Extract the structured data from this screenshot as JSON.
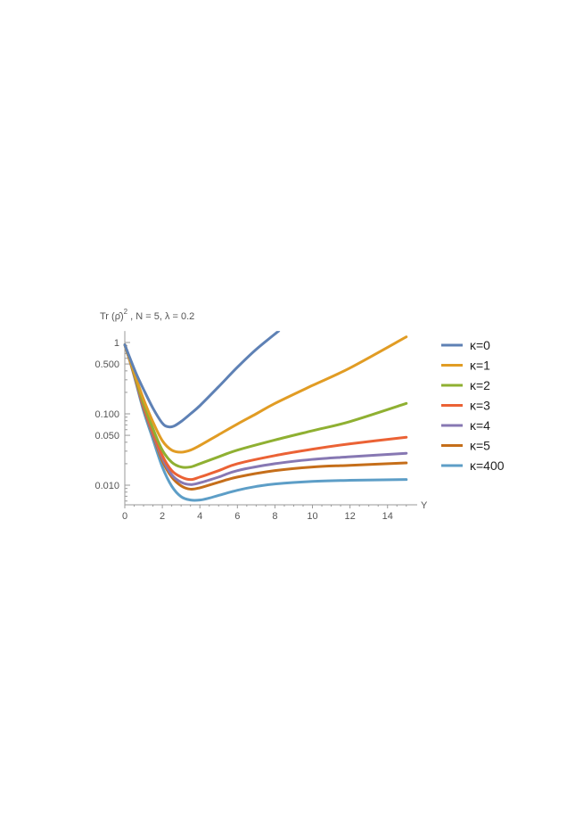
{
  "chart_data": {
    "type": "line",
    "title": "Tr (ρ̂)² , N = 5, λ = 0.2",
    "title_parts": {
      "prefix": "Tr (",
      "symbol": "ρ̂",
      "suffix": ")",
      "exponent": "2",
      "rest": " , N = 5, λ = 0.2"
    },
    "xlabel": "Y",
    "ylabel": "",
    "y_scale": "log",
    "xlim": [
      0,
      15.2
    ],
    "ylim": [
      0.0055,
      1.45
    ],
    "x_ticks": [
      0,
      2,
      4,
      6,
      8,
      10,
      12,
      14
    ],
    "x_tick_labels": [
      "0",
      "2",
      "4",
      "6",
      "8",
      "10",
      "12",
      "14"
    ],
    "y_ticks": [
      1,
      0.5,
      0.1,
      0.05,
      0.01
    ],
    "y_tick_labels": [
      "1",
      "0.500",
      "0.100",
      "0.050",
      "0.010"
    ],
    "grid": false,
    "legend_position": "right",
    "series": [
      {
        "name": "κ=0",
        "color": "#5E81B5",
        "x": [
          0,
          0.3,
          0.6,
          1.0,
          1.5,
          2.0,
          2.3,
          2.6,
          3.0,
          3.5,
          4.0,
          5.0,
          6.0,
          7.0,
          8.2
        ],
        "y": [
          0.93,
          0.58,
          0.37,
          0.22,
          0.12,
          0.074,
          0.066,
          0.067,
          0.078,
          0.1,
          0.13,
          0.24,
          0.45,
          0.8,
          1.45
        ]
      },
      {
        "name": "κ=1",
        "color": "#E19C24",
        "x": [
          0,
          0.3,
          0.6,
          1.0,
          1.5,
          2.0,
          2.5,
          3.0,
          3.5,
          4.0,
          5.0,
          6.0,
          7.0,
          8.0,
          10.0,
          12.0,
          15.0
        ],
        "y": [
          0.93,
          0.55,
          0.32,
          0.16,
          0.077,
          0.042,
          0.031,
          0.029,
          0.031,
          0.036,
          0.051,
          0.072,
          0.1,
          0.14,
          0.25,
          0.44,
          1.2
        ]
      },
      {
        "name": "κ=2",
        "color": "#8FB032",
        "x": [
          0,
          0.3,
          0.6,
          1.0,
          1.5,
          2.0,
          2.5,
          3.0,
          3.5,
          4.0,
          5.0,
          6.0,
          8.0,
          10.0,
          12.0,
          15.0
        ],
        "y": [
          0.93,
          0.54,
          0.3,
          0.14,
          0.062,
          0.031,
          0.021,
          0.018,
          0.018,
          0.02,
          0.025,
          0.031,
          0.043,
          0.058,
          0.078,
          0.14
        ]
      },
      {
        "name": "κ=3",
        "color": "#EB6235",
        "x": [
          0,
          0.3,
          0.6,
          1.0,
          1.5,
          2.0,
          2.5,
          3.0,
          3.5,
          4.0,
          5.0,
          6.0,
          8.0,
          10.0,
          12.0,
          15.0
        ],
        "y": [
          0.93,
          0.53,
          0.29,
          0.13,
          0.055,
          0.026,
          0.016,
          0.013,
          0.012,
          0.013,
          0.016,
          0.02,
          0.026,
          0.032,
          0.038,
          0.047
        ]
      },
      {
        "name": "κ=4",
        "color": "#8778B3",
        "x": [
          0,
          0.3,
          0.6,
          1.0,
          1.5,
          2.0,
          2.5,
          3.0,
          3.5,
          4.0,
          5.0,
          6.0,
          8.0,
          10.0,
          12.0,
          15.0
        ],
        "y": [
          0.93,
          0.53,
          0.28,
          0.125,
          0.052,
          0.024,
          0.014,
          0.011,
          0.0102,
          0.0108,
          0.013,
          0.016,
          0.02,
          0.023,
          0.025,
          0.028
        ]
      },
      {
        "name": "κ=5",
        "color": "#C56E1A",
        "x": [
          0,
          0.3,
          0.6,
          1.0,
          1.5,
          2.0,
          2.5,
          3.0,
          3.5,
          4.0,
          5.0,
          6.0,
          8.0,
          10.0,
          12.0,
          15.0
        ],
        "y": [
          0.93,
          0.52,
          0.28,
          0.12,
          0.05,
          0.022,
          0.013,
          0.0098,
          0.0088,
          0.0092,
          0.011,
          0.013,
          0.016,
          0.018,
          0.019,
          0.0205
        ]
      },
      {
        "name": "κ=400",
        "color": "#5D9EC7",
        "x": [
          0,
          0.3,
          0.6,
          1.0,
          1.5,
          2.0,
          2.5,
          3.0,
          3.5,
          4.0,
          4.5,
          5.0,
          6.0,
          7.0,
          8.0,
          10.0,
          12.0,
          15.0
        ],
        "y": [
          0.93,
          0.52,
          0.27,
          0.11,
          0.044,
          0.018,
          0.0097,
          0.0069,
          0.0062,
          0.0062,
          0.0066,
          0.0072,
          0.0085,
          0.0096,
          0.0104,
          0.0113,
          0.0117,
          0.012
        ]
      }
    ]
  }
}
